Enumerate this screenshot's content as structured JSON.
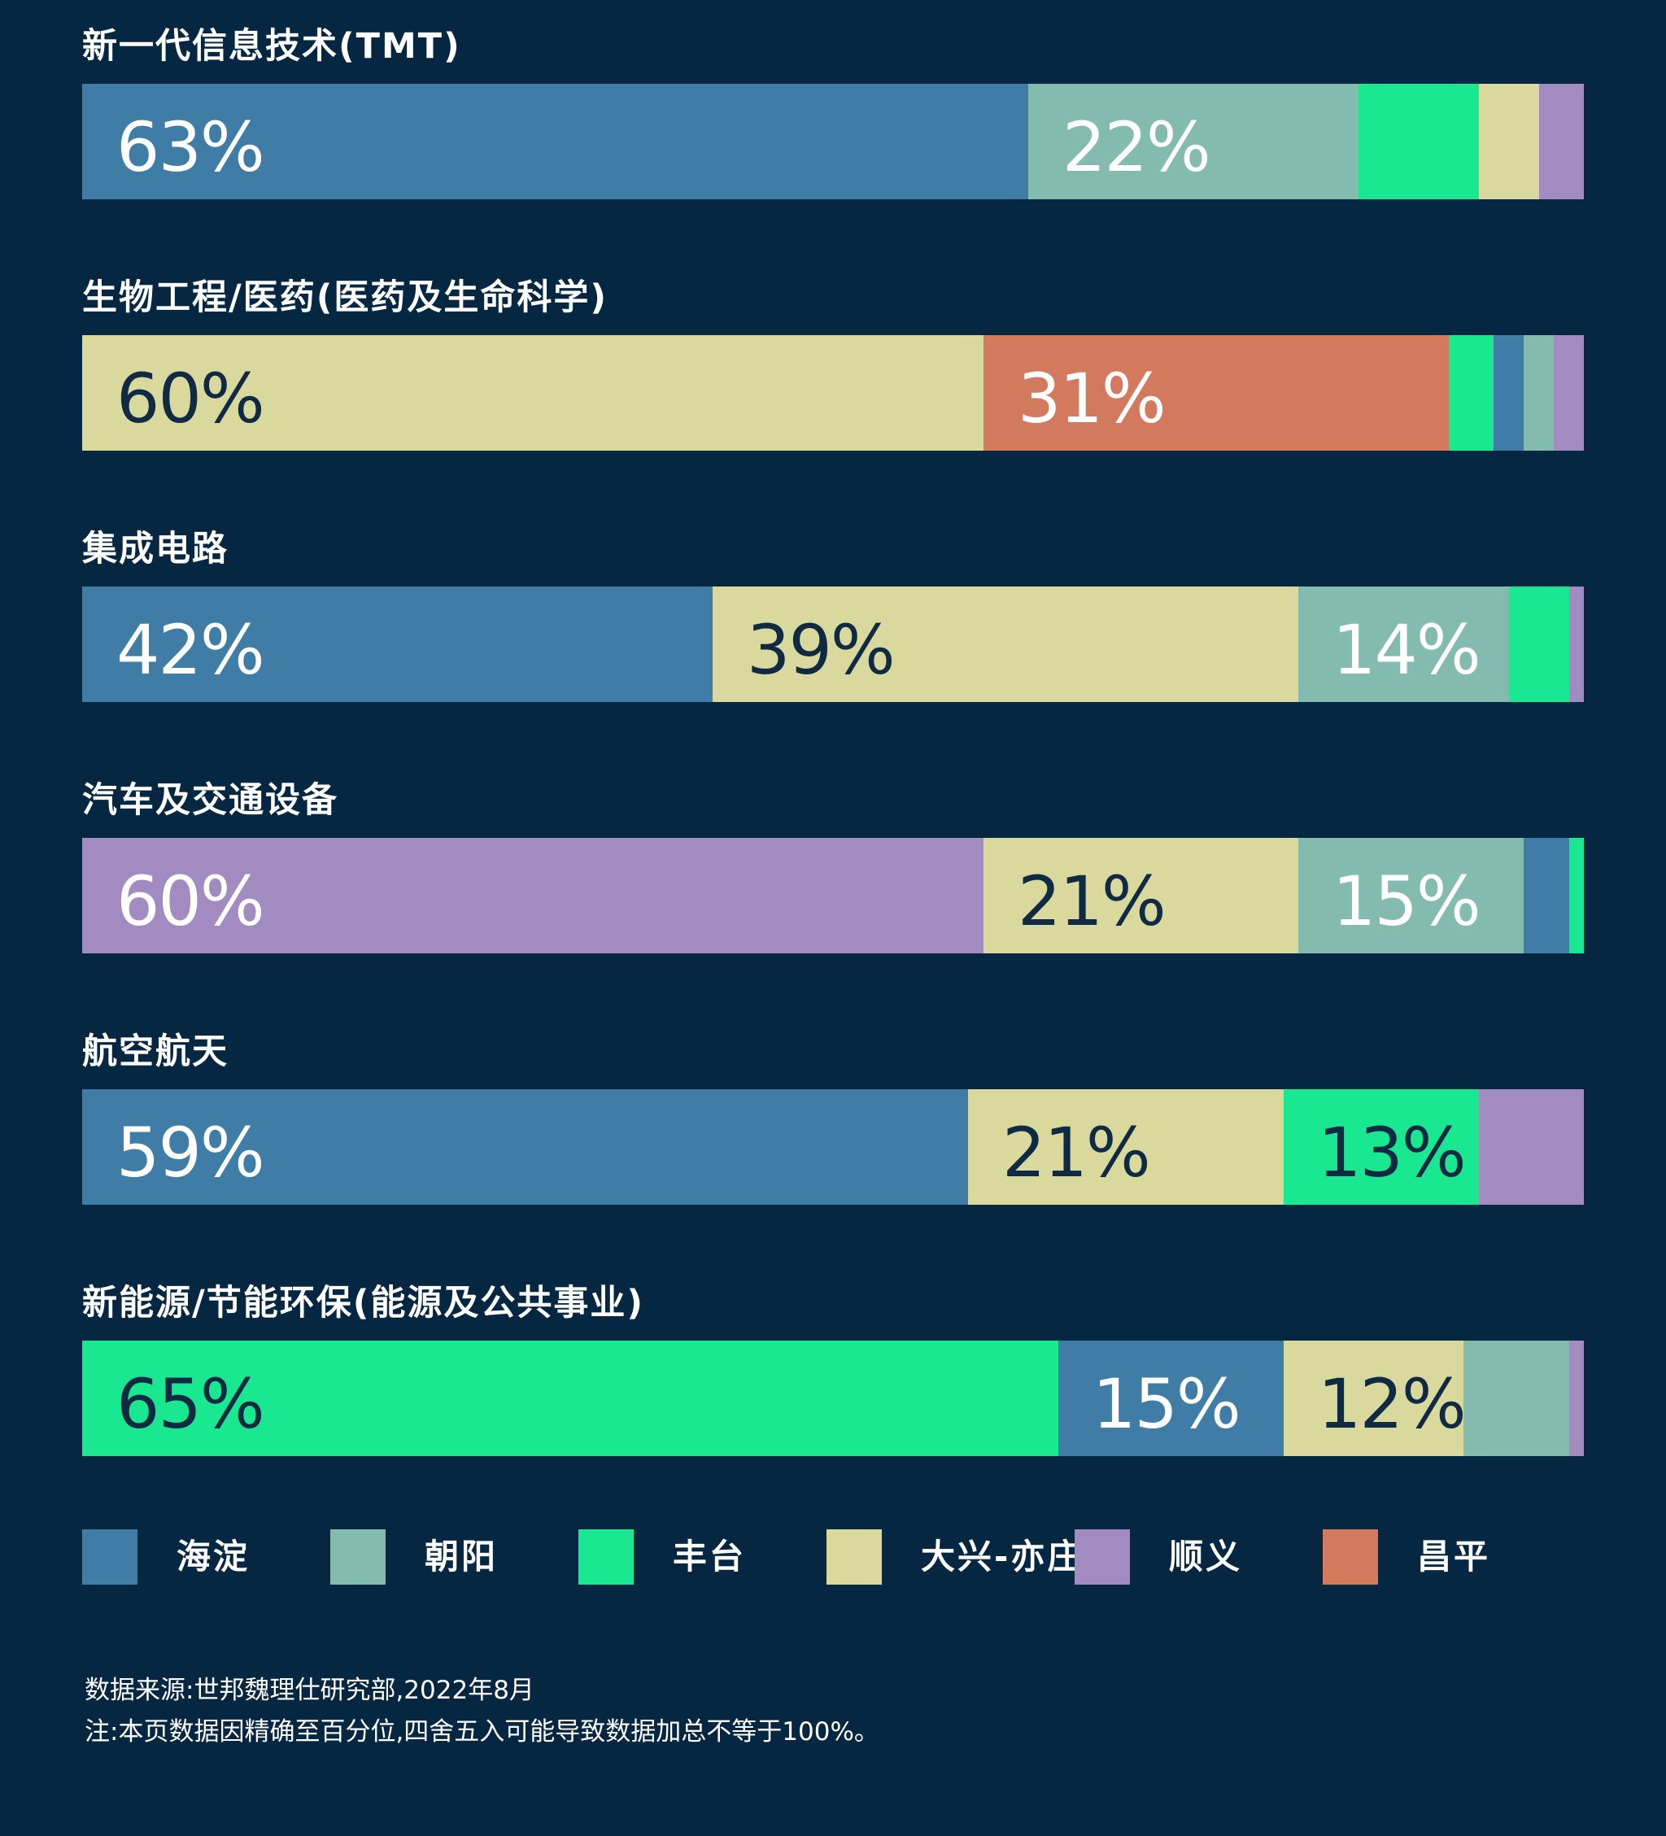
{
  "chart_data": {
    "type": "bar",
    "orientation": "horizontal-stacked-100",
    "xlim": [
      0,
      100
    ],
    "grid": false,
    "legend_placement": "bottom",
    "series": [
      {
        "key": "haidian",
        "name": "海淀",
        "color": "#3f7ca6"
      },
      {
        "key": "chaoyang",
        "name": "朝阳",
        "color": "#83bcae"
      },
      {
        "key": "fengtai",
        "name": "丰台",
        "color": "#19e891"
      },
      {
        "key": "daxing",
        "name": "大兴-亦庄",
        "color": "#d9d99e"
      },
      {
        "key": "shunyi",
        "name": "顺义",
        "color": "#a18bc0"
      },
      {
        "key": "changping",
        "name": "昌平",
        "color": "#d2795e"
      }
    ],
    "bars": [
      {
        "category": "新一代信息技术(TMT)",
        "segments": [
          {
            "series": "haidian",
            "value": 63,
            "label": "63%",
            "label_color": "#ffffff"
          },
          {
            "series": "chaoyang",
            "value": 22,
            "label": "22%",
            "label_color": "#ffffff"
          },
          {
            "series": "fengtai",
            "value": 8
          },
          {
            "series": "daxing",
            "value": 4
          },
          {
            "series": "shunyi",
            "value": 3
          }
        ]
      },
      {
        "category": "生物工程/医药(医药及生命科学)",
        "segments": [
          {
            "series": "daxing",
            "value": 60,
            "label": "60%",
            "label_color": "#102a44"
          },
          {
            "series": "changping",
            "value": 31,
            "label": "31%",
            "label_color": "#ffffff"
          },
          {
            "series": "fengtai",
            "value": 3
          },
          {
            "series": "haidian",
            "value": 2
          },
          {
            "series": "chaoyang",
            "value": 2
          },
          {
            "series": "shunyi",
            "value": 2
          }
        ]
      },
      {
        "category": "集成电路",
        "segments": [
          {
            "series": "haidian",
            "value": 42,
            "label": "42%",
            "label_color": "#ffffff"
          },
          {
            "series": "daxing",
            "value": 39,
            "label": "39%",
            "label_color": "#102a44"
          },
          {
            "series": "chaoyang",
            "value": 14,
            "label": "14%",
            "label_color": "#ffffff"
          },
          {
            "series": "fengtai",
            "value": 4
          },
          {
            "series": "shunyi",
            "value": 1
          }
        ]
      },
      {
        "category": "汽车及交通设备",
        "segments": [
          {
            "series": "shunyi",
            "value": 60,
            "label": "60%",
            "label_color": "#ffffff"
          },
          {
            "series": "daxing",
            "value": 21,
            "label": "21%",
            "label_color": "#102a44"
          },
          {
            "series": "chaoyang",
            "value": 15,
            "label": "15%",
            "label_color": "#ffffff"
          },
          {
            "series": "haidian",
            "value": 3
          },
          {
            "series": "fengtai",
            "value": 1
          }
        ]
      },
      {
        "category": "航空航天",
        "segments": [
          {
            "series": "haidian",
            "value": 59,
            "label": "59%",
            "label_color": "#ffffff"
          },
          {
            "series": "daxing",
            "value": 21,
            "label": "21%",
            "label_color": "#102a44"
          },
          {
            "series": "fengtai",
            "value": 13,
            "label": "13%",
            "label_color": "#102a44"
          },
          {
            "series": "shunyi",
            "value": 7
          }
        ]
      },
      {
        "category": "新能源/节能环保(能源及公共事业)",
        "segments": [
          {
            "series": "fengtai",
            "value": 65,
            "label": "65%",
            "label_color": "#102a44"
          },
          {
            "series": "haidian",
            "value": 15,
            "label": "15%",
            "label_color": "#ffffff"
          },
          {
            "series": "daxing",
            "value": 12,
            "label": "12%",
            "label_color": "#102a44"
          },
          {
            "series": "chaoyang",
            "value": 7
          },
          {
            "series": "shunyi",
            "value": 1
          }
        ]
      }
    ]
  },
  "footnotes": {
    "source": "数据来源:世邦魏理仕研究部,2022年8月",
    "note": "注:本页数据因精确至百分位,四舍五入可能导致数据加总不等于100%。"
  }
}
